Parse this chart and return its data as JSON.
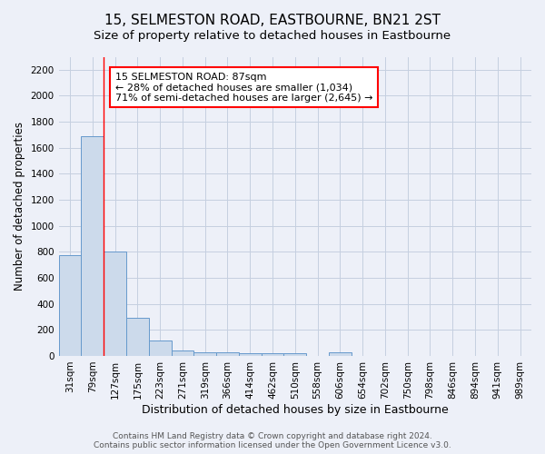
{
  "title": "15, SELMESTON ROAD, EASTBOURNE, BN21 2ST",
  "subtitle": "Size of property relative to detached houses in Eastbourne",
  "xlabel": "Distribution of detached houses by size in Eastbourne",
  "ylabel": "Number of detached properties",
  "footer_line1": "Contains HM Land Registry data © Crown copyright and database right 2024.",
  "footer_line2": "Contains public sector information licensed under the Open Government Licence v3.0.",
  "categories": [
    "31sqm",
    "79sqm",
    "127sqm",
    "175sqm",
    "223sqm",
    "271sqm",
    "319sqm",
    "366sqm",
    "414sqm",
    "462sqm",
    "510sqm",
    "558sqm",
    "606sqm",
    "654sqm",
    "702sqm",
    "750sqm",
    "798sqm",
    "846sqm",
    "894sqm",
    "941sqm",
    "989sqm"
  ],
  "values": [
    775,
    1690,
    800,
    295,
    115,
    42,
    30,
    26,
    22,
    20,
    18,
    0,
    25,
    0,
    0,
    0,
    0,
    0,
    0,
    0,
    0
  ],
  "bar_color": "#ccdaeb",
  "bar_edge_color": "#6699cc",
  "grid_color": "#c5cfe0",
  "background_color": "#edf0f8",
  "red_line_x": 1.5,
  "annotation_line1": "15 SELMESTON ROAD: 87sqm",
  "annotation_line2": "← 28% of detached houses are smaller (1,034)",
  "annotation_line3": "71% of semi-detached houses are larger (2,645) →",
  "annotation_box_color": "white",
  "annotation_box_edge_color": "red",
  "ylim": [
    0,
    2300
  ],
  "yticks": [
    0,
    200,
    400,
    600,
    800,
    1000,
    1200,
    1400,
    1600,
    1800,
    2000,
    2200
  ],
  "title_fontsize": 11,
  "subtitle_fontsize": 9.5,
  "xlabel_fontsize": 9,
  "ylabel_fontsize": 8.5,
  "tick_fontsize": 7.5,
  "annotation_fontsize": 8,
  "footer_fontsize": 6.5
}
